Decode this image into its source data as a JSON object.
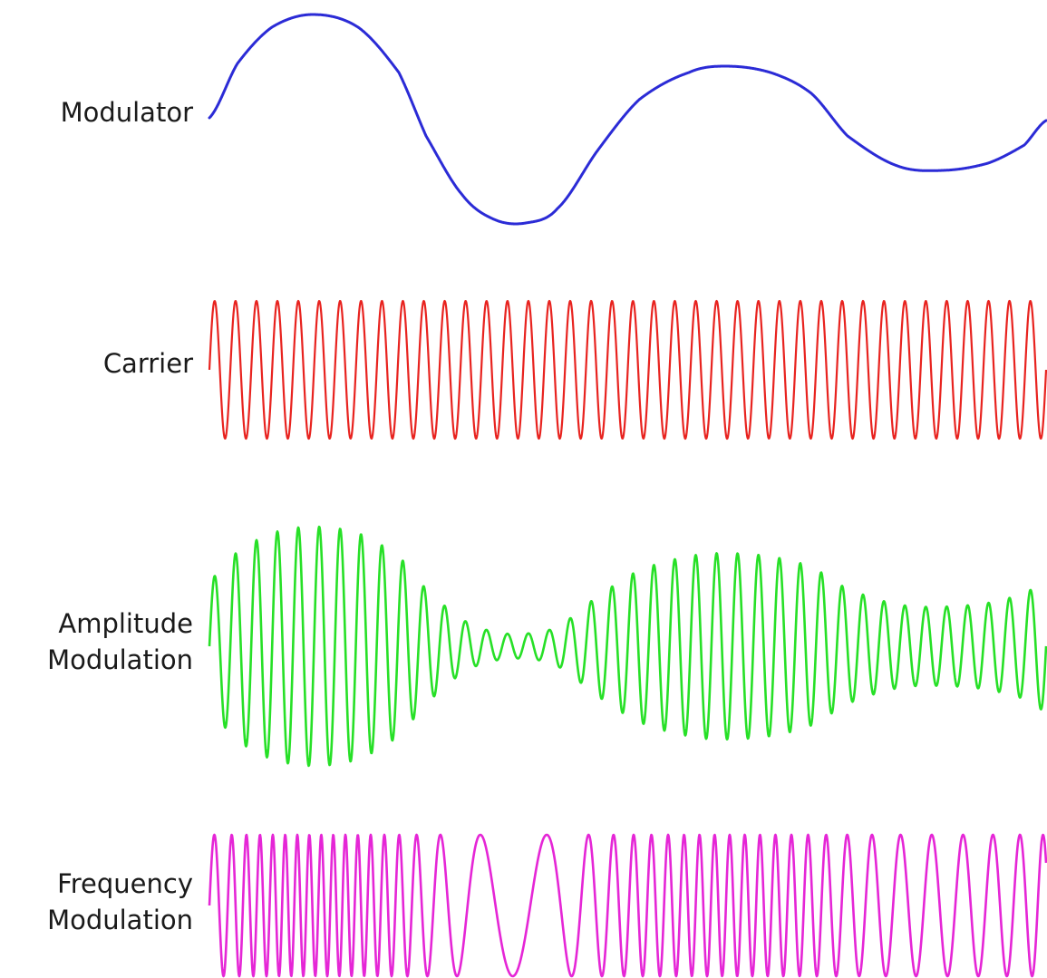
{
  "labels": {
    "modulator": "Modulator",
    "carrier": "Carrier",
    "am_line1": "Amplitude",
    "am_line2": "Modulation",
    "fm_line1": "Frequency",
    "fm_line2": "Modulation"
  },
  "colors": {
    "modulator": "#2b2bd6",
    "carrier": "#e8231f",
    "am": "#27e027",
    "fm": "#e526d6",
    "text": "#1a1a1a"
  }
}
